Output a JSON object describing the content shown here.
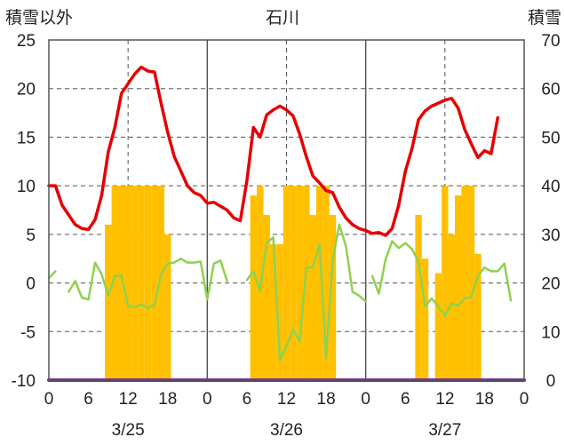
{
  "chart_data": {
    "type": "combo-bar-line",
    "title": "石川",
    "left_axis_label": "積雪以外",
    "right_axis_label": "積雪",
    "left_ylim": [
      -10,
      25
    ],
    "left_ticks": [
      "25",
      "20",
      "15",
      "10",
      "5",
      "0",
      "-5",
      "-10"
    ],
    "right_ylim": [
      0,
      70
    ],
    "right_ticks": [
      "70",
      "60",
      "50",
      "40",
      "30",
      "20",
      "10",
      "0"
    ],
    "x_tick_labels": [
      "0",
      "6",
      "12",
      "18",
      "0",
      "6",
      "12",
      "18",
      "0",
      "6",
      "12",
      "18",
      "0"
    ],
    "date_labels": [
      "3/25",
      "3/26",
      "3/27"
    ],
    "x_range_hours": [
      0,
      72
    ],
    "grid": true,
    "series": [
      {
        "kind": "line",
        "axis": "left",
        "color": "#e60000",
        "data": [
          [
            0,
            10
          ],
          [
            1,
            10
          ],
          [
            2,
            8
          ],
          [
            3,
            7
          ],
          [
            4,
            6
          ],
          [
            5,
            5.6
          ],
          [
            6,
            5.5
          ],
          [
            7,
            6.5
          ],
          [
            8,
            9
          ],
          [
            9,
            13.5
          ],
          [
            10,
            16
          ],
          [
            11,
            19.5
          ],
          [
            12,
            20.5
          ],
          [
            13,
            21.5
          ],
          [
            14,
            22.2
          ],
          [
            15,
            21.8
          ],
          [
            16,
            21.7
          ],
          [
            17,
            18.5
          ],
          [
            18,
            15.5
          ],
          [
            19,
            13
          ],
          [
            20,
            11.5
          ],
          [
            21,
            10
          ],
          [
            22,
            9.3
          ],
          [
            23,
            9
          ],
          [
            24,
            8.2
          ],
          [
            25,
            8.3
          ],
          [
            26,
            7.9
          ],
          [
            27,
            7.5
          ],
          [
            28,
            6.7
          ],
          [
            29,
            6.4
          ],
          [
            30,
            10.5
          ],
          [
            31,
            16
          ],
          [
            32,
            15
          ],
          [
            33,
            17.3
          ],
          [
            34,
            17.8
          ],
          [
            35,
            18.2
          ],
          [
            36,
            17.8
          ],
          [
            37,
            17.2
          ],
          [
            38,
            15.3
          ],
          [
            39,
            13
          ],
          [
            40,
            11
          ],
          [
            41,
            10.3
          ],
          [
            42,
            9.5
          ],
          [
            43,
            9.3
          ],
          [
            44,
            7.8
          ],
          [
            45,
            6.7
          ],
          [
            46,
            6
          ],
          [
            47,
            5.6
          ],
          [
            48,
            5.4
          ],
          [
            49,
            5.1
          ],
          [
            50,
            5.2
          ],
          [
            51,
            4.9
          ],
          [
            52,
            5.6
          ],
          [
            53,
            8
          ],
          [
            54,
            11.5
          ],
          [
            55,
            13.8
          ],
          [
            56,
            16.8
          ],
          [
            57,
            17.7
          ],
          [
            58,
            18.2
          ],
          [
            59,
            18.5
          ],
          [
            60,
            18.8
          ],
          [
            61,
            19
          ],
          [
            62,
            18
          ],
          [
            63,
            15.8
          ],
          [
            64,
            14.3
          ],
          [
            65,
            12.9
          ],
          [
            66,
            13.6
          ],
          [
            67,
            13.3
          ],
          [
            68,
            17
          ]
        ]
      },
      {
        "kind": "line",
        "axis": "left",
        "color": "#8fd14f",
        "segments": [
          [
            [
              0,
              0.5
            ],
            [
              1,
              1.2
            ]
          ],
          [
            [
              3,
              -0.9
            ],
            [
              4,
              0.2
            ],
            [
              5,
              -1.5
            ],
            [
              6,
              -1.7
            ],
            [
              7,
              2.1
            ],
            [
              8,
              0.9
            ],
            [
              9,
              -1.3
            ],
            [
              10,
              0.7
            ],
            [
              11,
              0.8
            ],
            [
              12,
              -2.4
            ],
            [
              13,
              -2.5
            ],
            [
              14,
              -2.2
            ],
            [
              15,
              -2.6
            ],
            [
              16,
              -2.3
            ],
            [
              17,
              0.9
            ],
            [
              18,
              2
            ],
            [
              19,
              2.1
            ],
            [
              20,
              2.5
            ],
            [
              21,
              2.1
            ],
            [
              22,
              2.1
            ],
            [
              23,
              2.2
            ],
            [
              24,
              -1.7
            ],
            [
              25,
              2
            ],
            [
              26,
              2.3
            ],
            [
              27,
              0.2
            ]
          ],
          [
            [
              30,
              0.3
            ],
            [
              31,
              1.2
            ],
            [
              32,
              -0.8
            ],
            [
              33,
              4.1
            ],
            [
              34,
              4.7
            ],
            [
              35,
              -8
            ],
            [
              36,
              -6.5
            ],
            [
              37,
              -4.8
            ],
            [
              38,
              -6
            ],
            [
              39,
              1.6
            ],
            [
              40,
              1.6
            ],
            [
              41,
              4
            ],
            [
              42,
              -7.8
            ],
            [
              43,
              2.3
            ],
            [
              44,
              6
            ],
            [
              45,
              3.8
            ],
            [
              46,
              -0.9
            ],
            [
              47,
              -1.3
            ],
            [
              48,
              -1.9
            ]
          ],
          [
            [
              49,
              0.7
            ],
            [
              50,
              -1.1
            ],
            [
              51,
              2.4
            ],
            [
              52,
              4.3
            ],
            [
              53,
              3.6
            ],
            [
              54,
              4.1
            ],
            [
              55,
              3.5
            ],
            [
              56,
              2.2
            ],
            [
              57,
              -2.4
            ],
            [
              58,
              -1.6
            ],
            [
              59,
              -2.4
            ],
            [
              60,
              -3.4
            ],
            [
              61,
              -2.1
            ],
            [
              62,
              -2.3
            ],
            [
              63,
              -1.6
            ],
            [
              64,
              -1.4
            ],
            [
              65,
              0.7
            ],
            [
              66,
              1.6
            ],
            [
              67,
              1.2
            ],
            [
              68,
              1.2
            ],
            [
              69,
              2
            ],
            [
              70,
              -1.8
            ]
          ]
        ]
      },
      {
        "kind": "line",
        "axis": "left",
        "color": "#7030a0",
        "data": [
          [
            0,
            -10
          ],
          [
            72,
            -10
          ]
        ]
      },
      {
        "kind": "bar",
        "axis": "right",
        "color": "#ffc000",
        "bars": [
          [
            9,
            32
          ],
          [
            10,
            40
          ],
          [
            11,
            40
          ],
          [
            12,
            40
          ],
          [
            13,
            40
          ],
          [
            14,
            40
          ],
          [
            15,
            40
          ],
          [
            16,
            40
          ],
          [
            17,
            40
          ],
          [
            18,
            30
          ],
          [
            31,
            38
          ],
          [
            32,
            40
          ],
          [
            33,
            34
          ],
          [
            34,
            28
          ],
          [
            35,
            28
          ],
          [
            36,
            40
          ],
          [
            37,
            40
          ],
          [
            38,
            40
          ],
          [
            39,
            40
          ],
          [
            40,
            34
          ],
          [
            41,
            40
          ],
          [
            42,
            40
          ],
          [
            43,
            34
          ],
          [
            56,
            34
          ],
          [
            57,
            25
          ],
          [
            59,
            22
          ],
          [
            60,
            40
          ],
          [
            61,
            30
          ],
          [
            62,
            38
          ],
          [
            63,
            40
          ],
          [
            64,
            40
          ],
          [
            65,
            26
          ]
        ]
      }
    ]
  }
}
